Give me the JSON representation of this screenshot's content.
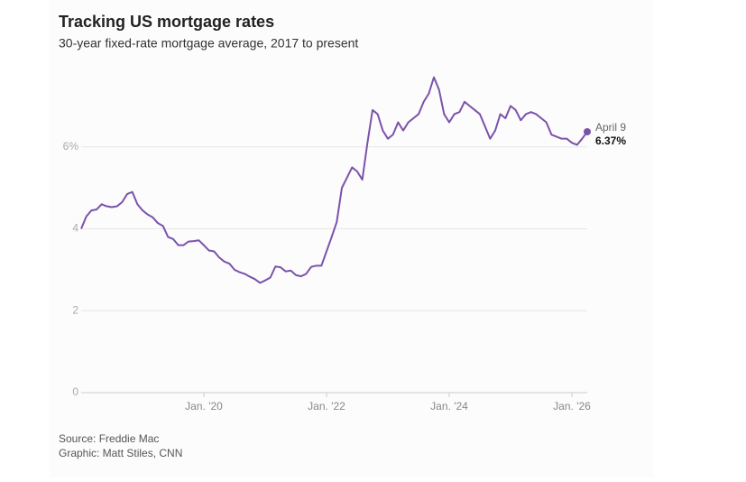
{
  "chart_data": {
    "type": "line",
    "title": "Tracking US mortgage rates",
    "subtitle": "30-year fixed-rate mortgage average, 2017 to present",
    "source": "Source: Freddie Mac",
    "credit": "Graphic: Matt Stiles, CNN",
    "annotation": "April 9",
    "x": [
      "2018-01",
      "2018-02",
      "2018-03",
      "2018-04",
      "2018-05",
      "2018-06",
      "2018-07",
      "2018-08",
      "2018-09",
      "2018-10",
      "2018-11",
      "2018-12",
      "2019-01",
      "2019-02",
      "2019-03",
      "2019-04",
      "2019-05",
      "2019-06",
      "2019-07",
      "2019-08",
      "2019-09",
      "2019-10",
      "2019-11",
      "2019-12",
      "2020-01",
      "2020-02",
      "2020-03",
      "2020-04",
      "2020-05",
      "2020-06",
      "2020-07",
      "2020-08",
      "2020-09",
      "2020-10",
      "2020-11",
      "2020-12",
      "2021-01",
      "2021-02",
      "2021-03",
      "2021-04",
      "2021-05",
      "2021-06",
      "2021-07",
      "2021-08",
      "2021-09",
      "2021-10",
      "2021-11",
      "2021-12",
      "2022-01",
      "2022-02",
      "2022-03",
      "2022-04",
      "2022-05",
      "2022-06",
      "2022-07",
      "2022-08",
      "2022-09",
      "2022-10",
      "2022-11",
      "2022-12",
      "2023-01",
      "2023-02",
      "2023-03",
      "2023-04",
      "2023-05",
      "2023-06",
      "2023-07",
      "2023-08",
      "2023-09",
      "2023-10",
      "2023-11",
      "2023-12",
      "2024-01",
      "2024-02",
      "2024-03",
      "2024-04",
      "2024-05",
      "2024-06",
      "2024-07",
      "2024-08",
      "2024-09",
      "2024-10",
      "2024-11",
      "2024-12",
      "2025-01",
      "2025-02",
      "2025-03",
      "2025-04",
      "2025-05",
      "2025-06",
      "2025-07",
      "2025-08",
      "2025-09",
      "2025-10",
      "2025-11",
      "2025-12",
      "2026-01",
      "2026-02",
      "2026-03",
      "2026-04"
    ],
    "series": [
      {
        "name": "30-year fixed",
        "color": "#7b52ab",
        "values": [
          4.0,
          4.3,
          4.45,
          4.47,
          4.6,
          4.55,
          4.53,
          4.55,
          4.65,
          4.85,
          4.9,
          4.6,
          4.45,
          4.35,
          4.28,
          4.14,
          4.07,
          3.8,
          3.75,
          3.6,
          3.6,
          3.69,
          3.7,
          3.72,
          3.6,
          3.47,
          3.45,
          3.3,
          3.2,
          3.15,
          3.0,
          2.94,
          2.9,
          2.83,
          2.77,
          2.68,
          2.74,
          2.81,
          3.08,
          3.06,
          2.96,
          2.98,
          2.87,
          2.84,
          2.9,
          3.07,
          3.1,
          3.1,
          3.45,
          3.8,
          4.17,
          5.0,
          5.25,
          5.5,
          5.4,
          5.2,
          6.1,
          6.9,
          6.8,
          6.4,
          6.2,
          6.3,
          6.6,
          6.4,
          6.6,
          6.7,
          6.8,
          7.1,
          7.3,
          7.7,
          7.4,
          6.8,
          6.6,
          6.8,
          6.85,
          7.1,
          7.0,
          6.9,
          6.8,
          6.5,
          6.2,
          6.4,
          6.8,
          6.7,
          7.0,
          6.9,
          6.65,
          6.8,
          6.85,
          6.8,
          6.7,
          6.6,
          6.3,
          6.25,
          6.2,
          6.2,
          6.1,
          6.05,
          6.2,
          6.37
        ],
        "value_labels": [
          null,
          null,
          null,
          null,
          null,
          null,
          null,
          null,
          null,
          null,
          null,
          null,
          null,
          null,
          null,
          null,
          null,
          null,
          null,
          null,
          null,
          null,
          null,
          null,
          null,
          null,
          null,
          null,
          null,
          null,
          null,
          null,
          null,
          null,
          null,
          null,
          null,
          null,
          null,
          null,
          null,
          null,
          null,
          null,
          null,
          null,
          null,
          null,
          null,
          null,
          null,
          null,
          null,
          null,
          null,
          null,
          null,
          null,
          null,
          null,
          null,
          null,
          null,
          null,
          null,
          null,
          null,
          null,
          null,
          null,
          null,
          null,
          null,
          null,
          null,
          null,
          null,
          null,
          null,
          null,
          null,
          null,
          null,
          null,
          null,
          null,
          null,
          null,
          null,
          null,
          null,
          null,
          null,
          null,
          null,
          null,
          null,
          null,
          null,
          "6.37%"
        ]
      }
    ],
    "xlim": [
      "2018-01",
      "2026-04"
    ],
    "xticks": [
      {
        "value": "2020-01",
        "label": "Jan. '20"
      },
      {
        "value": "2022-01",
        "label": "Jan. '22"
      },
      {
        "value": "2024-01",
        "label": "Jan. '24"
      },
      {
        "value": "2026-01",
        "label": "Jan. '26"
      }
    ],
    "ylim": [
      0,
      8
    ],
    "yticks": [
      0,
      2,
      4,
      {
        "value": 6,
        "label": "6%"
      }
    ],
    "grid": true
  }
}
